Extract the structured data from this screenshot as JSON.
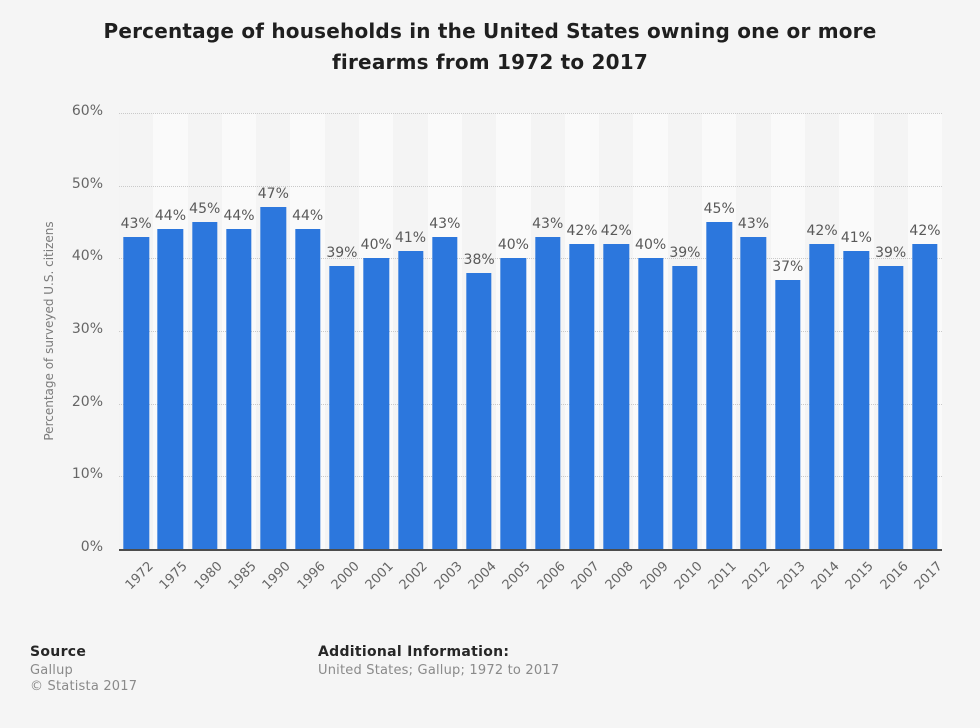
{
  "chart_data": {
    "type": "bar",
    "title": "Percentage of households in the United States owning one or more firearms from 1972 to 2017",
    "categories": [
      "1972",
      "1975",
      "1980",
      "1985",
      "1990",
      "1996",
      "2000",
      "2001",
      "2002",
      "2003",
      "2004",
      "2005",
      "2006",
      "2007",
      "2008",
      "2009",
      "2010",
      "2011",
      "2012",
      "2013",
      "2014",
      "2015",
      "2016",
      "2017"
    ],
    "values": [
      43,
      44,
      45,
      44,
      47,
      44,
      39,
      40,
      41,
      43,
      38,
      40,
      43,
      42,
      42,
      40,
      39,
      45,
      43,
      37,
      42,
      41,
      39,
      42
    ],
    "value_labels": [
      "43%",
      "44%",
      "45%",
      "44%",
      "47%",
      "44%",
      "39%",
      "40%",
      "41%",
      "43%",
      "38%",
      "40%",
      "43%",
      "42%",
      "42%",
      "40%",
      "39%",
      "45%",
      "43%",
      "37%",
      "42%",
      "41%",
      "39%",
      "42%"
    ],
    "xlabel": "",
    "ylabel": "Percentage of surveyed U.S. citizens",
    "ylim": [
      0,
      60
    ],
    "ytick_values": [
      60,
      50,
      40,
      30,
      20,
      10,
      0
    ],
    "ytick_labels": [
      "60%",
      "50%",
      "40%",
      "30%",
      "20%",
      "10%",
      "0%"
    ],
    "grid": "horizontal-dotted",
    "legend": "none"
  },
  "footer": {
    "source_label": "Source",
    "source_value": "Gallup",
    "copyright": "© Statista 2017",
    "additional_label": "Additional Information:",
    "additional_value": "United States; Gallup; 1972 to 2017"
  },
  "colors": {
    "bar": "#2c77dd",
    "background": "#f5f5f5",
    "stripe_dark": "#f4f4f4",
    "stripe_light": "#fafafa",
    "gridline": "#c9c9c9",
    "axis_line": "#4c4c4c",
    "value_label_text": "#595959",
    "axis_text": "#666666",
    "muted_text": "#8a8a8a",
    "title_text": "#1f1f1f"
  }
}
